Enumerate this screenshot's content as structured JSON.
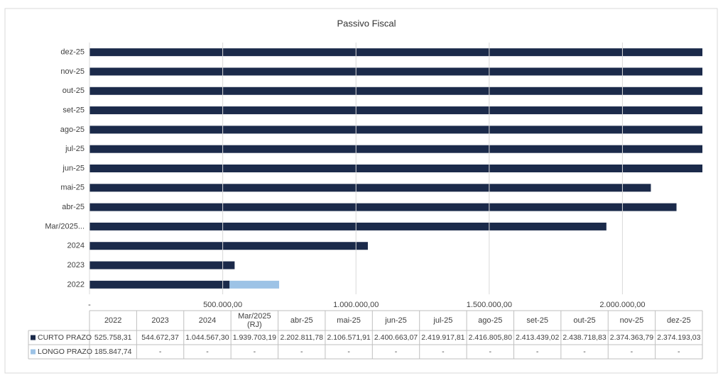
{
  "chart_data": {
    "type": "stacked-hbar",
    "title": "Passivo Fiscal",
    "categories": [
      "2022",
      "2023",
      "2024",
      "Mar/2025 (RJ)",
      "abr-25",
      "mai-25",
      "jun-25",
      "jul-25",
      "ago-25",
      "set-25",
      "out-25",
      "nov-25",
      "dez-25"
    ],
    "axis_category_labels": [
      "2022",
      "2023",
      "2024",
      "Mar/2025...",
      "abr-25",
      "mai-25",
      "jun-25",
      "jul-25",
      "ago-25",
      "set-25",
      "out-25",
      "nov-25",
      "dez-25"
    ],
    "series": [
      {
        "name": "CURTO PRAZO",
        "color": "#1b2a4a",
        "values": [
          525758.31,
          544672.37,
          1044567.3,
          1939703.19,
          2202811.78,
          2106571.91,
          2400663.07,
          2419917.81,
          2416805.8,
          2413439.02,
          2438718.83,
          2374363.79,
          2374193.03
        ],
        "value_labels": [
          "525.758,31",
          "544.672,37",
          "1.044.567,30",
          "1.939.703,19",
          "2.202.811,78",
          "2.106.571,91",
          "2.400.663,07",
          "2.419.917,81",
          "2.416.805,80",
          "2.413.439,02",
          "2.438.718,83",
          "2.374.363,79",
          "2.374.193,03"
        ]
      },
      {
        "name": "LONGO PRAZO",
        "color": "#9dc3e6",
        "values": [
          185847.74,
          null,
          null,
          null,
          null,
          null,
          null,
          null,
          null,
          null,
          null,
          null,
          null
        ],
        "value_labels": [
          "185.847,74",
          "-",
          "-",
          "-",
          "-",
          "-",
          "-",
          "-",
          "-",
          "-",
          "-",
          "-",
          "-"
        ]
      }
    ],
    "xlim": [
      0,
      2300000
    ],
    "xticks": [
      {
        "value": 0,
        "label": "-"
      },
      {
        "value": 500000,
        "label": "500.000,00"
      },
      {
        "value": 1000000,
        "label": "1.000.000,00"
      },
      {
        "value": 1500000,
        "label": "1.500.000,00"
      },
      {
        "value": 2000000,
        "label": "2.000.000,00"
      }
    ],
    "grid": true
  }
}
